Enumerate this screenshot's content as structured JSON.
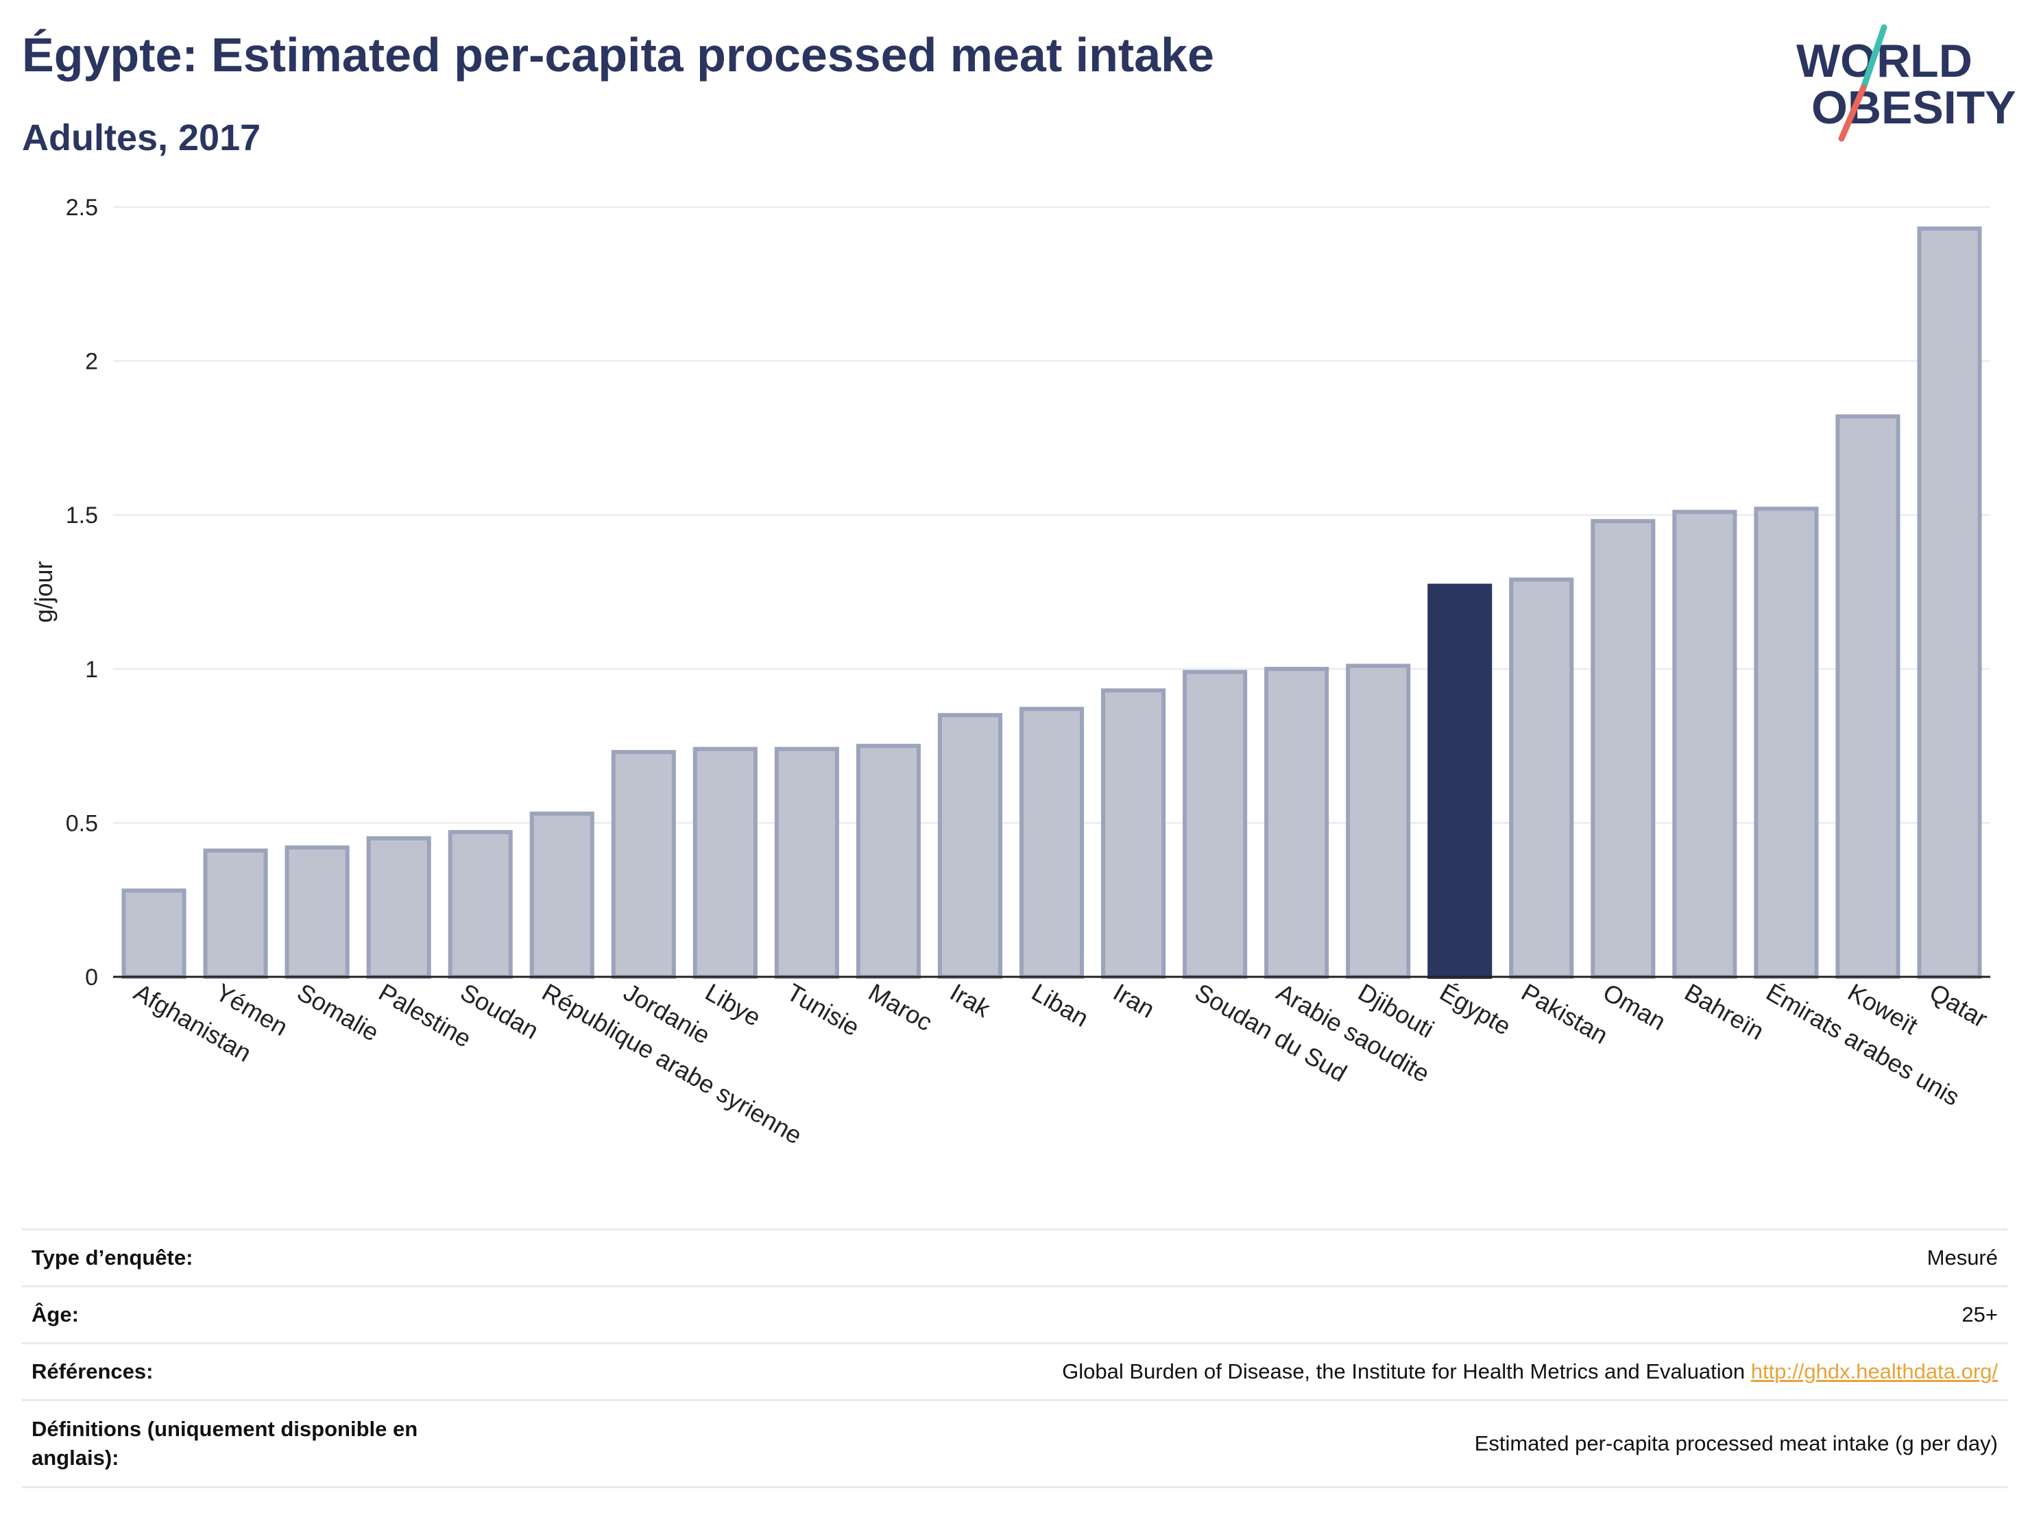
{
  "header": {
    "title": "Égypte: Estimated per-capita processed meat intake",
    "subtitle": "Adultes, 2017"
  },
  "logo": {
    "line1": "WORLD",
    "line2": "OBESITY",
    "colors": {
      "text": "#2a3560",
      "slash_teal": "#3dbfb0",
      "slash_coral": "#e8675a"
    }
  },
  "colors": {
    "bar": "#bfc3d0",
    "bar_stroke": "#9ca3bc",
    "highlight": "#2a3560",
    "grid": "#e6e8ef",
    "axis": "#222222"
  },
  "chart_data": {
    "type": "bar",
    "title": "Égypte: Estimated per-capita processed meat intake",
    "subtitle": "Adultes, 2017",
    "xlabel": "",
    "ylabel": "g/jour",
    "ylim": [
      0,
      2.5
    ],
    "yticks": [
      0,
      0.5,
      1,
      1.5,
      2,
      2.5
    ],
    "ytick_labels": [
      "0",
      "0.5",
      "1",
      "1.5",
      "2",
      "2.5"
    ],
    "grid": true,
    "highlight": "Égypte",
    "categories": [
      "Afghanistan",
      "Yémen",
      "Somalie",
      "Palestine",
      "Soudan",
      "République arabe syrienne",
      "Jordanie",
      "Libye",
      "Tunisie",
      "Maroc",
      "Irak",
      "Liban",
      "Iran",
      "Soudan du Sud",
      "Arabie saoudite",
      "Djibouti",
      "Égypte",
      "Pakistan",
      "Oman",
      "Bahreïn",
      "Émirats arabes unis",
      "Koweït",
      "Qatar"
    ],
    "values": [
      0.28,
      0.41,
      0.42,
      0.45,
      0.47,
      0.53,
      0.73,
      0.74,
      0.74,
      0.75,
      0.85,
      0.87,
      0.93,
      0.99,
      1.0,
      1.01,
      1.27,
      1.29,
      1.48,
      1.51,
      1.52,
      1.82,
      2.43
    ]
  },
  "meta": {
    "rows": [
      {
        "label": "Type d’enquête:",
        "value": "Mesuré"
      },
      {
        "label": "Âge:",
        "value": "25+"
      },
      {
        "label": "Références:",
        "value": "Global Burden of Disease, the Institute for Health Metrics and Evaluation",
        "link": "http://ghdx.healthdata.org/"
      },
      {
        "label": "Définitions (uniquement disponible en anglais):",
        "value": "Estimated per-capita processed meat intake (g per day)"
      }
    ]
  }
}
